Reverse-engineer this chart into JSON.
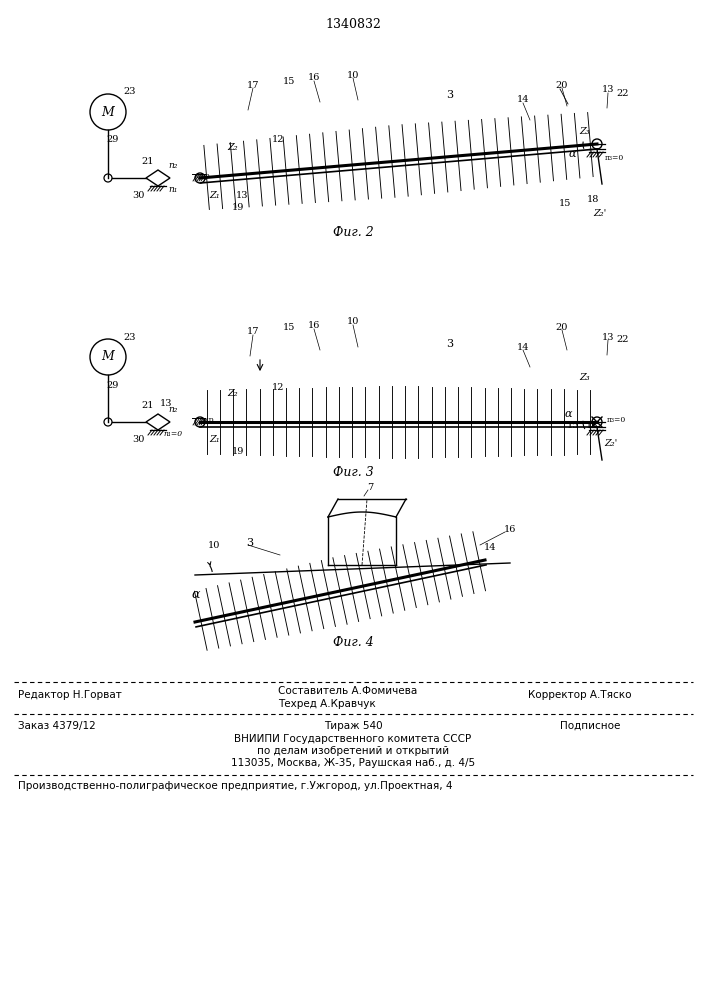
{
  "title": "1340832",
  "fig2_caption": "Фиг. 2",
  "fig3_caption": "Фиг. 3",
  "fig4_caption": "Фиг. 4",
  "footer_line1_left": "Редактор Н.Горват",
  "footer_line1_center": "Составитель А.Фомичева",
  "footer_line1_center2": "Техред А.Кравчук",
  "footer_line1_right": "Корректор А.Тяско",
  "footer_line2_left": "Заказ 4379/12",
  "footer_line2_center": "Тираж 540",
  "footer_line2_right": "Подписное",
  "footer_line3": "ВНИИПИ Государственного комитета СССР",
  "footer_line4": "по делам изобретений и открытий",
  "footer_line5": "113035, Москва, Ж-35, Раушская наб., д. 4/5",
  "footer_line6": "Производственно-полиграфическое предприятие, г.Ужгород, ул.Проектная, 4",
  "bg_color": "#ffffff",
  "line_color": "#000000",
  "text_color": "#000000"
}
